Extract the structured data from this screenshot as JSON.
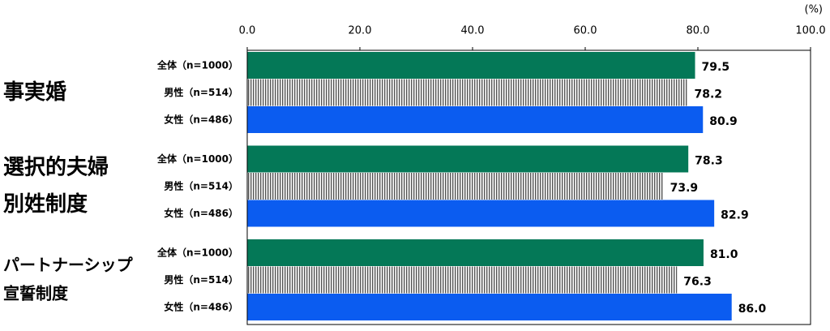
{
  "chart_data": {
    "type": "bar",
    "orientation": "horizontal",
    "categories": [
      [
        "事実婚"
      ],
      [
        "選択的夫婦",
        "別姓制度"
      ],
      [
        "パートナーシップ",
        "宣誓制度"
      ]
    ],
    "series": [
      {
        "name": "全体（n=1000）",
        "color": "#047857",
        "values": [
          79.5,
          78.3,
          81.0
        ],
        "value_labels": [
          "79.5",
          "78.3",
          "81.0"
        ]
      },
      {
        "name": "男性（n=514）",
        "color": "#555555",
        "pattern": "vertical-lines",
        "values": [
          78.2,
          73.9,
          76.3
        ],
        "value_labels": [
          "78.2",
          "73.9",
          "76.3"
        ]
      },
      {
        "name": "女性（n=486）",
        "color": "#0b5cf0",
        "values": [
          80.9,
          82.9,
          86.0
        ],
        "value_labels": [
          "80.9",
          "82.9",
          "86.0"
        ]
      }
    ],
    "xlim": [
      0,
      100
    ],
    "xticks": [
      {
        "value": 0,
        "label": "0.0"
      },
      {
        "value": 20,
        "label": "20.0"
      },
      {
        "value": 40,
        "label": "40.0"
      },
      {
        "value": 60,
        "label": "60.0"
      },
      {
        "value": 80,
        "label": "80.0"
      },
      {
        "value": 100,
        "label": "100.0"
      }
    ],
    "unit_label": "(%)"
  }
}
